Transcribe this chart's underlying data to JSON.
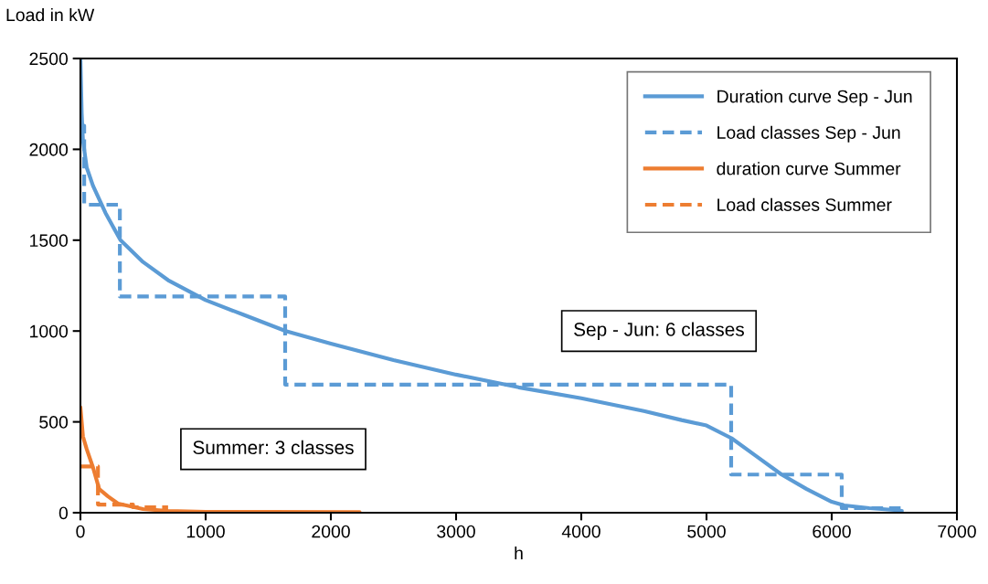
{
  "chart_data": {
    "type": "line",
    "xlabel": "h",
    "ylabel": "Load in kW",
    "xlim": [
      0,
      7000
    ],
    "ylim": [
      0,
      2500
    ],
    "xticks": [
      0,
      1000,
      2000,
      3000,
      4000,
      5000,
      6000,
      7000
    ],
    "yticks": [
      0,
      500,
      1000,
      1500,
      2000,
      2500
    ],
    "grid": false,
    "legend": "top right",
    "annotations": [
      "Sep - Jun: 6 classes",
      "Summer: 3 classes"
    ],
    "series": [
      {
        "name": "Duration curve Sep - Jun",
        "color": "#5b9bd5",
        "line_style": "solid",
        "x": [
          0,
          10,
          20,
          50,
          100,
          200,
          320,
          500,
          700,
          1000,
          1300,
          1640,
          2000,
          2500,
          3000,
          3500,
          4000,
          4500,
          4800,
          5000,
          5200,
          5400,
          5600,
          5800,
          6000,
          6100,
          6300,
          6500,
          6560
        ],
        "values": [
          2500,
          2200,
          2050,
          1900,
          1800,
          1650,
          1500,
          1380,
          1280,
          1170,
          1090,
          1000,
          930,
          840,
          760,
          690,
          630,
          560,
          510,
          480,
          410,
          310,
          210,
          130,
          60,
          40,
          25,
          15,
          10
        ]
      },
      {
        "name": "Load classes Sep - Jun",
        "color": "#5b9bd5",
        "type": "step",
        "line_style": "dashed",
        "x": [
          0,
          30,
          315,
          1635,
          5197,
          6080,
          6560
        ],
        "values": [
          2130,
          1695,
          1190,
          705,
          210,
          25,
          25
        ]
      },
      {
        "name": "duration curve Summer",
        "color": "#ed7d31",
        "line_style": "solid",
        "x": [
          0,
          20,
          50,
          100,
          150,
          220,
          300,
          400,
          500,
          700,
          1000,
          1500,
          2230
        ],
        "values": [
          580,
          420,
          350,
          250,
          130,
          90,
          50,
          35,
          20,
          10,
          5,
          4,
          3
        ]
      },
      {
        "name": "Load classes Summer",
        "color": "#ed7d31",
        "type": "step",
        "line_style": "dashed",
        "x": [
          0,
          140,
          420,
          700
        ],
        "values": [
          255,
          45,
          30,
          30
        ]
      }
    ]
  }
}
